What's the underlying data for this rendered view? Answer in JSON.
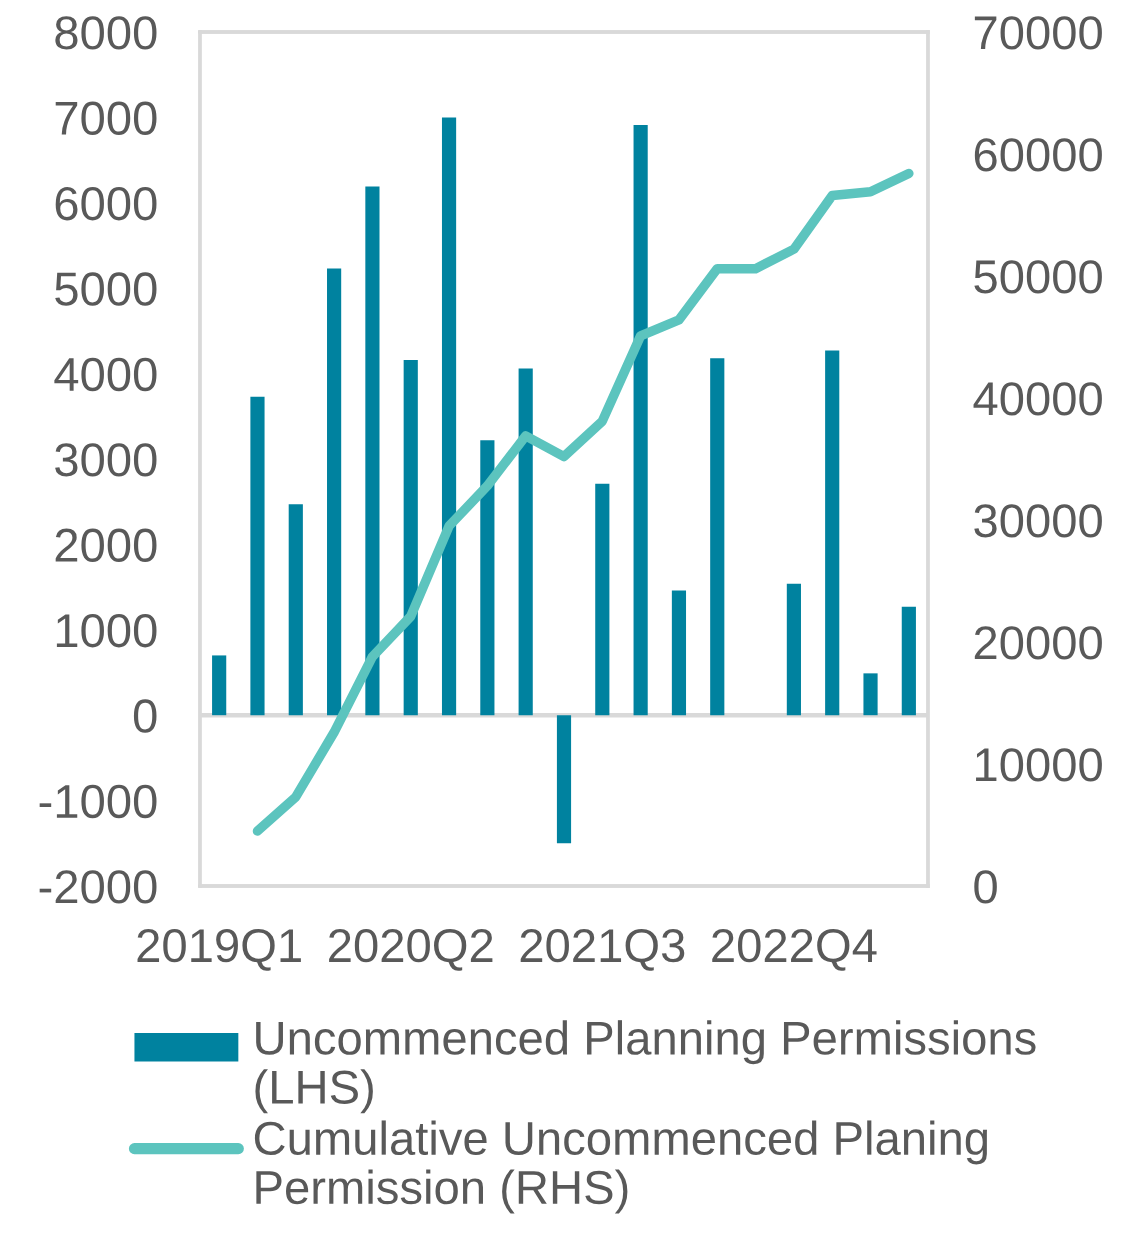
{
  "chart_data": {
    "type": "bar",
    "categories": [
      "2019Q1",
      null,
      null,
      null,
      null,
      "2020Q2",
      null,
      null,
      null,
      null,
      "2021Q3",
      null,
      null,
      null,
      null,
      "2022Q4",
      null,
      null,
      null
    ],
    "series": [
      {
        "name": "Uncommenced Planning Permissions (LHS)",
        "color": "#00829f",
        "values": [
          700,
          3730,
          2470,
          5230,
          6190,
          4160,
          7000,
          3220,
          4060,
          -1500,
          2710,
          6910,
          1460,
          4180,
          0,
          1540,
          4270,
          490,
          1270
        ]
      },
      {
        "name": "Cumulative Uncommenced Planing Permission (RHS)",
        "type": "line",
        "axis": "y2",
        "color": "#5cc4be",
        "values": [
          null,
          4500,
          7300,
          12600,
          18800,
          22100,
          29500,
          32800,
          36900,
          35200,
          38100,
          45100,
          46400,
          50600,
          50600,
          52200,
          56600,
          56900,
          58400
        ]
      }
    ],
    "ylim": [
      -2000,
      8000
    ],
    "yticks": [
      -2000,
      -1000,
      0,
      1000,
      2000,
      3000,
      4000,
      5000,
      6000,
      7000,
      8000
    ],
    "y2lim": [
      0,
      70000
    ],
    "y2ticks": [
      0,
      10000,
      20000,
      30000,
      40000,
      50000,
      60000,
      70000
    ],
    "ref_lines": [
      {
        "axis": "y",
        "value": 0,
        "color": "#d9d9d9"
      }
    ],
    "grid": false,
    "legend": "bottom"
  }
}
